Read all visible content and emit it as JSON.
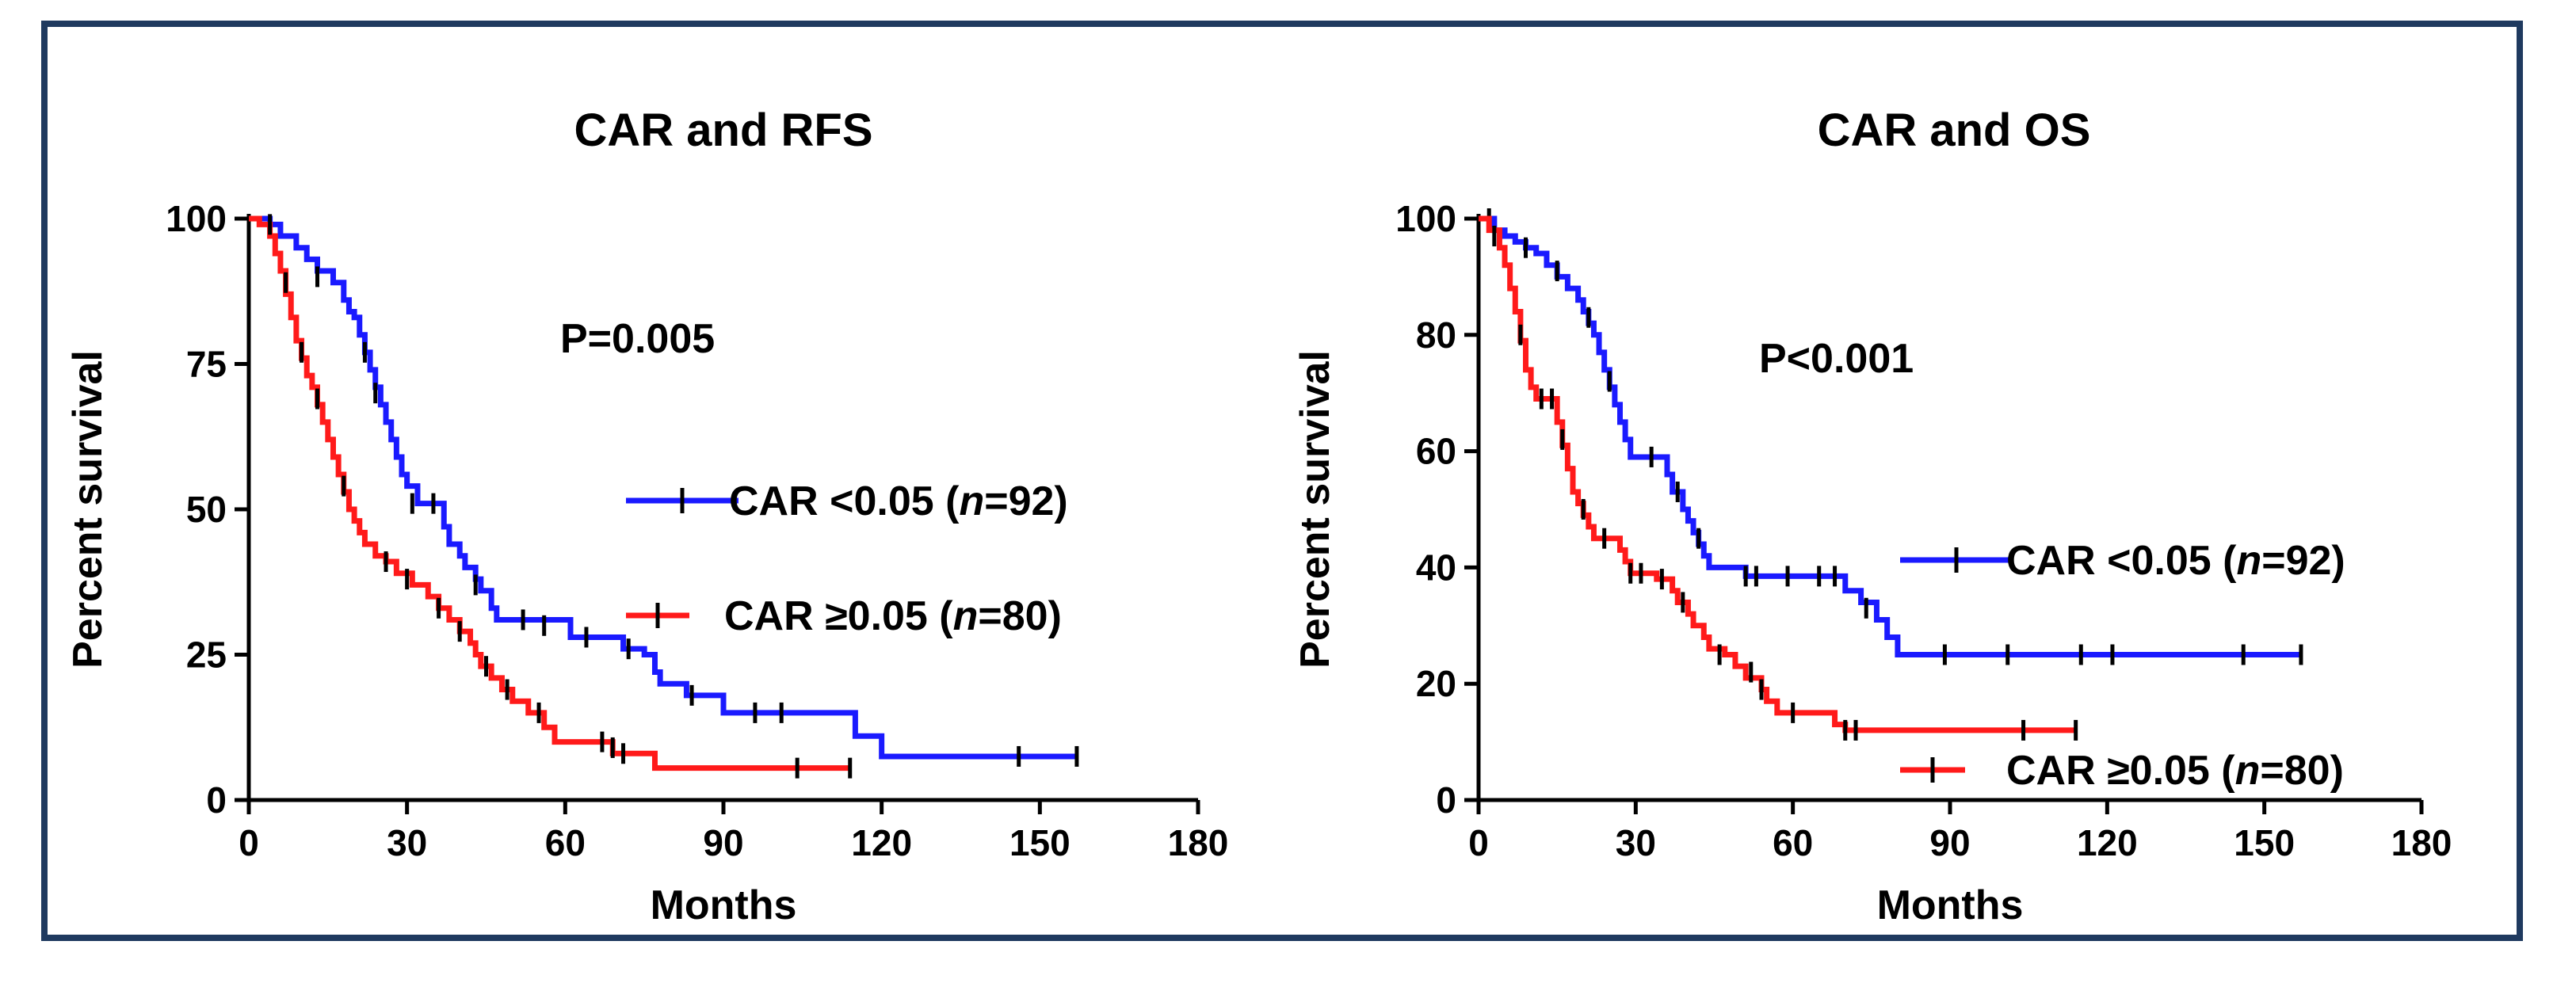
{
  "colors": {
    "frame": "#1f3a5f",
    "series_low": "#1a1aff",
    "series_high": "#ff1a1a",
    "censor": "#000000"
  },
  "chart_data": [
    {
      "type": "line",
      "subtype": "kaplan-meier",
      "title": "CAR and RFS",
      "p_value": "P=0.005",
      "xlabel": "Months",
      "ylabel": "Percent survival",
      "xlim": [
        0,
        180
      ],
      "ylim": [
        0,
        100
      ],
      "xticks": [
        "0",
        "30",
        "60",
        "90",
        "120",
        "150",
        "180"
      ],
      "yticks": [
        "0",
        "25",
        "50",
        "75",
        "100"
      ],
      "legend_position": "middle-right",
      "series": [
        {
          "name": "CAR <0.05 (n=92)",
          "legend_prefix": "CAR <0.05 (",
          "legend_n_label": "n",
          "legend_suffix": "=92)",
          "color": "#1a1aff",
          "steps": [
            [
              0,
              100
            ],
            [
              4,
              99
            ],
            [
              6,
              97
            ],
            [
              9,
              95
            ],
            [
              11,
              93
            ],
            [
              13,
              91
            ],
            [
              16,
              89
            ],
            [
              18,
              86
            ],
            [
              19,
              84
            ],
            [
              20,
              83
            ],
            [
              21,
              80
            ],
            [
              22,
              77
            ],
            [
              23,
              74
            ],
            [
              24,
              71
            ],
            [
              25,
              68
            ],
            [
              26,
              65
            ],
            [
              27,
              62
            ],
            [
              28,
              59
            ],
            [
              29,
              56
            ],
            [
              30,
              54
            ],
            [
              32,
              51
            ],
            [
              36,
              51
            ],
            [
              37,
              47
            ],
            [
              38,
              44
            ],
            [
              40,
              42
            ],
            [
              41,
              40
            ],
            [
              43,
              38
            ],
            [
              44,
              36
            ],
            [
              46,
              33
            ],
            [
              47,
              31
            ],
            [
              60,
              31
            ],
            [
              61,
              28
            ],
            [
              70,
              28
            ],
            [
              71,
              26
            ],
            [
              75,
              25
            ],
            [
              77,
              22
            ],
            [
              78,
              20
            ],
            [
              82,
              20
            ],
            [
              83,
              18
            ],
            [
              89,
              18
            ],
            [
              90,
              15
            ],
            [
              114,
              15
            ],
            [
              115,
              11
            ],
            [
              119,
              11
            ],
            [
              120,
              7.5
            ],
            [
              157,
              7.5
            ]
          ],
          "censors": [
            [
              13,
              90
            ],
            [
              22,
              77
            ],
            [
              24,
              70
            ],
            [
              31,
              51
            ],
            [
              35,
              51
            ],
            [
              43,
              37
            ],
            [
              52,
              31
            ],
            [
              56,
              30
            ],
            [
              64,
              28
            ],
            [
              72,
              26
            ],
            [
              84,
              18
            ],
            [
              96,
              15
            ],
            [
              101,
              15
            ],
            [
              146,
              7.5
            ],
            [
              157,
              7.5
            ]
          ]
        },
        {
          "name": "CAR ≥0.05 (n=80)",
          "legend_prefix": "CAR ≥0.05 (",
          "legend_n_label": "n",
          "legend_suffix": "=80)",
          "color": "#ff1a1a",
          "steps": [
            [
              0,
              100
            ],
            [
              2,
              99
            ],
            [
              4,
              97
            ],
            [
              5,
              94
            ],
            [
              6,
              91
            ],
            [
              7,
              87
            ],
            [
              8,
              83
            ],
            [
              9,
              79
            ],
            [
              10,
              76
            ],
            [
              11,
              73
            ],
            [
              12,
              71
            ],
            [
              13,
              68
            ],
            [
              14,
              65
            ],
            [
              15,
              62
            ],
            [
              16,
              59
            ],
            [
              17,
              56
            ],
            [
              18,
              53
            ],
            [
              19,
              50
            ],
            [
              20,
              48
            ],
            [
              21,
              46
            ],
            [
              22,
              44
            ],
            [
              24,
              42
            ],
            [
              26,
              41
            ],
            [
              28,
              39
            ],
            [
              31,
              37
            ],
            [
              34,
              35
            ],
            [
              36,
              33
            ],
            [
              38,
              31
            ],
            [
              40,
              29
            ],
            [
              42,
              27
            ],
            [
              43,
              25
            ],
            [
              44,
              23
            ],
            [
              46,
              21
            ],
            [
              48,
              19
            ],
            [
              50,
              17
            ],
            [
              53,
              15
            ],
            [
              56,
              12.5
            ],
            [
              58,
              10
            ],
            [
              68,
              10
            ],
            [
              69,
              8
            ],
            [
              76,
              8
            ],
            [
              77,
              5.5
            ],
            [
              114,
              5.5
            ]
          ],
          "censors": [
            [
              4,
              99
            ],
            [
              7,
              89
            ],
            [
              10,
              77
            ],
            [
              13,
              69
            ],
            [
              18,
              54
            ],
            [
              26,
              41
            ],
            [
              30,
              38
            ],
            [
              36,
              33
            ],
            [
              40,
              29
            ],
            [
              45,
              23
            ],
            [
              49,
              19
            ],
            [
              55,
              15
            ],
            [
              67,
              10
            ],
            [
              69,
              9
            ],
            [
              71,
              8
            ],
            [
              104,
              5.5
            ],
            [
              114,
              5.5
            ]
          ]
        }
      ]
    },
    {
      "type": "line",
      "subtype": "kaplan-meier",
      "title": "CAR and OS",
      "p_value": "P<0.001",
      "xlabel": "Months",
      "ylabel": "Percent survival",
      "xlim": [
        0,
        180
      ],
      "ylim": [
        0,
        100
      ],
      "xticks": [
        "0",
        "30",
        "60",
        "90",
        "120",
        "150",
        "180"
      ],
      "yticks": [
        "0",
        "20",
        "40",
        "60",
        "80",
        "100"
      ],
      "legend_position": "right",
      "series": [
        {
          "name": "CAR <0.05 (n=92)",
          "legend_prefix": "CAR <0.05 (",
          "legend_n_label": "n",
          "legend_suffix": "=92)",
          "color": "#1a1aff",
          "steps": [
            [
              0,
              100
            ],
            [
              3,
              98
            ],
            [
              5,
              97
            ],
            [
              7,
              96
            ],
            [
              9,
              95
            ],
            [
              11,
              94
            ],
            [
              13,
              92
            ],
            [
              15,
              90
            ],
            [
              17,
              88
            ],
            [
              19,
              86
            ],
            [
              20,
              84
            ],
            [
              21,
              82
            ],
            [
              22,
              80
            ],
            [
              23,
              77
            ],
            [
              24,
              74
            ],
            [
              25,
              71
            ],
            [
              26,
              68
            ],
            [
              27,
              65
            ],
            [
              28,
              62
            ],
            [
              29,
              59
            ],
            [
              35,
              59
            ],
            [
              36,
              56
            ],
            [
              37,
              53
            ],
            [
              39,
              50
            ],
            [
              40,
              48
            ],
            [
              41,
              46
            ],
            [
              42,
              44
            ],
            [
              43,
              42
            ],
            [
              44,
              40
            ],
            [
              50,
              40
            ],
            [
              51,
              38.5
            ],
            [
              69,
              38.5
            ],
            [
              70,
              36
            ],
            [
              73,
              34
            ],
            [
              76,
              31
            ],
            [
              78,
              28
            ],
            [
              80,
              25
            ],
            [
              157,
              25
            ]
          ],
          "censors": [
            [
              2,
              100
            ],
            [
              9,
              95
            ],
            [
              15,
              91
            ],
            [
              21,
              83
            ],
            [
              25,
              72
            ],
            [
              33,
              59
            ],
            [
              38,
              53
            ],
            [
              42,
              45
            ],
            [
              51,
              38.5
            ],
            [
              53,
              38.5
            ],
            [
              59,
              38.5
            ],
            [
              65,
              38.5
            ],
            [
              68,
              38.5
            ],
            [
              74,
              33
            ],
            [
              89,
              25
            ],
            [
              101,
              25
            ],
            [
              115,
              25
            ],
            [
              121,
              25
            ],
            [
              146,
              25
            ],
            [
              157,
              25
            ]
          ]
        },
        {
          "name": "CAR ≥0.05 (n=80)",
          "legend_prefix": "CAR ≥0.05 (",
          "legend_n_label": "n",
          "legend_suffix": "=80)",
          "color": "#ff1a1a",
          "steps": [
            [
              0,
              100
            ],
            [
              2,
              98
            ],
            [
              4,
              95
            ],
            [
              5,
              92
            ],
            [
              6,
              88
            ],
            [
              7,
              84
            ],
            [
              8,
              79
            ],
            [
              9,
              74
            ],
            [
              10,
              71
            ],
            [
              11,
              69
            ],
            [
              14,
              69
            ],
            [
              15,
              65
            ],
            [
              16,
              61
            ],
            [
              17,
              57
            ],
            [
              18,
              53
            ],
            [
              19,
              51
            ],
            [
              20,
              49
            ],
            [
              21,
              47
            ],
            [
              22,
              45
            ],
            [
              26,
              45
            ],
            [
              27,
              43
            ],
            [
              28,
              41
            ],
            [
              29,
              39
            ],
            [
              33,
              39
            ],
            [
              34,
              38
            ],
            [
              37,
              36
            ],
            [
              38,
              34
            ],
            [
              40,
              32
            ],
            [
              41,
              30
            ],
            [
              43,
              28
            ],
            [
              44,
              26
            ],
            [
              47,
              25
            ],
            [
              49,
              23
            ],
            [
              51,
              21
            ],
            [
              54,
              19
            ],
            [
              55,
              17
            ],
            [
              57,
              15
            ],
            [
              67,
              15
            ],
            [
              68,
              13
            ],
            [
              70,
              12
            ],
            [
              114,
              12
            ]
          ],
          "censors": [
            [
              3,
              97
            ],
            [
              8,
              80
            ],
            [
              12,
              69
            ],
            [
              14,
              69
            ],
            [
              16,
              62
            ],
            [
              20,
              50
            ],
            [
              24,
              45
            ],
            [
              29,
              39
            ],
            [
              31,
              39
            ],
            [
              35,
              38
            ],
            [
              39,
              34
            ],
            [
              46,
              25
            ],
            [
              52,
              22
            ],
            [
              54,
              19
            ],
            [
              60,
              15
            ],
            [
              70,
              12
            ],
            [
              72,
              12
            ],
            [
              104,
              12
            ],
            [
              114,
              12
            ]
          ]
        }
      ]
    }
  ]
}
